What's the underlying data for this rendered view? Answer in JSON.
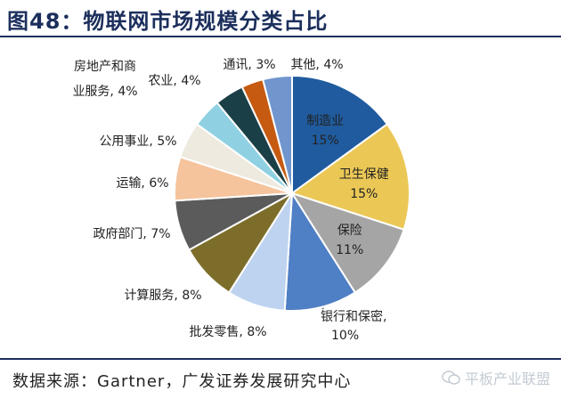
{
  "figure": {
    "title": "图48：物联网市场规模分类占比",
    "source": "数据来源：Gartner，广发证券发展研究中心",
    "watermark": "平板产业联盟"
  },
  "colors": {
    "header_rule": "#1c2f5c",
    "text": "#222222",
    "slice_edge": "#ffffff"
  },
  "chart_data": {
    "type": "pie",
    "start_angle_deg": 0,
    "direction": "clockwise",
    "slices": [
      {
        "label": "制造业",
        "value": 15,
        "value_text": "15%",
        "color": "#1f5b9e",
        "label_mode": "inside"
      },
      {
        "label": "卫生保健",
        "value": 15,
        "value_text": "15%",
        "color": "#ebc856",
        "label_mode": "inside"
      },
      {
        "label": "保险",
        "value": 11,
        "value_text": "11%",
        "color": "#a5a5a5",
        "label_mode": "inside"
      },
      {
        "label": "银行和保密",
        "value": 10,
        "value_text": "10%",
        "color": "#4f7fc4",
        "label_mode": "outside"
      },
      {
        "label": "批发零售",
        "value": 8,
        "value_text": "8%",
        "color": "#bed3ef",
        "label_mode": "outside"
      },
      {
        "label": "计算服务",
        "value": 8,
        "value_text": "8%",
        "color": "#7c6e2a",
        "label_mode": "outside"
      },
      {
        "label": "政府部门",
        "value": 7,
        "value_text": "7%",
        "color": "#5b5b5b",
        "label_mode": "outside"
      },
      {
        "label": "运输",
        "value": 6,
        "value_text": "6%",
        "color": "#f5c39c",
        "label_mode": "outside"
      },
      {
        "label": "公用事业",
        "value": 5,
        "value_text": "5%",
        "color": "#eeeae0",
        "label_mode": "outside"
      },
      {
        "label": "房地产和商业服务",
        "value": 4,
        "value_text": "4%",
        "color": "#8fd1e2",
        "label_mode": "outside"
      },
      {
        "label": "农业",
        "value": 4,
        "value_text": "4%",
        "color": "#1b3f47",
        "label_mode": "outside"
      },
      {
        "label": "通讯",
        "value": 3,
        "value_text": "3%",
        "color": "#c65a11",
        "label_mode": "outside"
      },
      {
        "label": "其他",
        "value": 4,
        "value_text": "4%",
        "color": "#7096cd",
        "label_mode": "outside"
      }
    ]
  }
}
